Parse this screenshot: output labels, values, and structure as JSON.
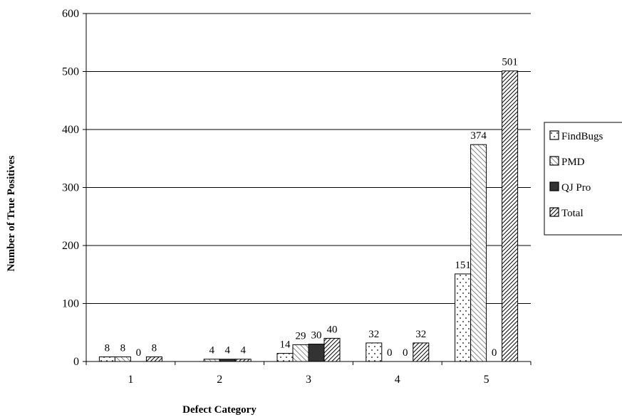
{
  "chart_data": {
    "type": "bar",
    "title": "",
    "xlabel": "Defect Category",
    "ylabel": "Number of True Positives",
    "categories": [
      "1",
      "2",
      "3",
      "4",
      "5"
    ],
    "ylim": [
      0,
      600
    ],
    "yticks": [
      "0",
      "100",
      "200",
      "300",
      "400",
      "500",
      "600"
    ],
    "grid": true,
    "legend_position": "right",
    "series": [
      {
        "name": "FindBugs",
        "pattern": "dots",
        "values": [
          8,
          0,
          14,
          32,
          151
        ],
        "labels": [
          "8",
          "",
          "14",
          "32",
          "151"
        ]
      },
      {
        "name": "PMD",
        "pattern": "light-diagonal",
        "values": [
          8,
          4,
          29,
          0,
          374
        ],
        "labels": [
          "8",
          "4",
          "29",
          "0",
          "374"
        ]
      },
      {
        "name": "QJ Pro",
        "pattern": "solid-dark",
        "values": [
          0,
          4,
          30,
          0,
          0
        ],
        "labels": [
          "0",
          "4",
          "30",
          "0",
          "0"
        ]
      },
      {
        "name": "Total",
        "pattern": "dense-diagonal",
        "values": [
          8,
          4,
          40,
          32,
          501
        ],
        "labels": [
          "8",
          "4",
          "40",
          "32",
          "501"
        ]
      }
    ],
    "colors": {
      "dark_fill": "#333333",
      "outline": "#000000",
      "background": "#ffffff"
    }
  }
}
